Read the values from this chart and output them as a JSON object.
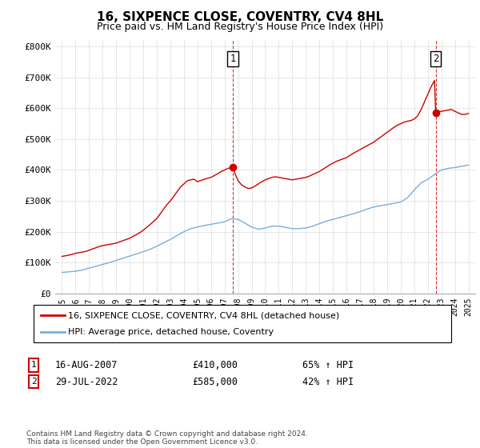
{
  "title": "16, SIXPENCE CLOSE, COVENTRY, CV4 8HL",
  "subtitle": "Price paid vs. HM Land Registry's House Price Index (HPI)",
  "ylim": [
    0,
    820000
  ],
  "yticks": [
    0,
    100000,
    200000,
    300000,
    400000,
    500000,
    600000,
    700000,
    800000
  ],
  "ytick_labels": [
    "£0",
    "£100K",
    "£200K",
    "£300K",
    "£400K",
    "£500K",
    "£600K",
    "£700K",
    "£800K"
  ],
  "red_color": "#cc0000",
  "blue_color": "#7aaddb",
  "sale1_x": 2007.62,
  "sale1_y": 410000,
  "sale2_x": 2022.58,
  "sale2_y": 585000,
  "legend_red": "16, SIXPENCE CLOSE, COVENTRY, CV4 8HL (detached house)",
  "legend_blue": "HPI: Average price, detached house, Coventry",
  "annotation1_num": "1",
  "annotation1_date": "16-AUG-2007",
  "annotation1_price": "£410,000",
  "annotation1_hpi": "65% ↑ HPI",
  "annotation2_num": "2",
  "annotation2_date": "29-JUL-2022",
  "annotation2_price": "£585,000",
  "annotation2_hpi": "42% ↑ HPI",
  "footer": "Contains HM Land Registry data © Crown copyright and database right 2024.\nThis data is licensed under the Open Government Licence v3.0.",
  "xlim_left": 1994.5,
  "xlim_right": 2025.5,
  "red_years": [
    1995.0,
    1995.25,
    1995.5,
    1995.75,
    1996.0,
    1996.25,
    1996.5,
    1996.75,
    1997.0,
    1997.25,
    1997.5,
    1997.75,
    1998.0,
    1998.25,
    1998.5,
    1998.75,
    1999.0,
    1999.25,
    1999.5,
    1999.75,
    2000.0,
    2000.25,
    2000.5,
    2000.75,
    2001.0,
    2001.25,
    2001.5,
    2001.75,
    2002.0,
    2002.25,
    2002.5,
    2002.75,
    2003.0,
    2003.25,
    2003.5,
    2003.75,
    2004.0,
    2004.25,
    2004.5,
    2004.75,
    2005.0,
    2005.25,
    2005.5,
    2005.75,
    2006.0,
    2006.25,
    2006.5,
    2006.75,
    2007.0,
    2007.25,
    2007.5,
    2007.62,
    2007.75,
    2008.0,
    2008.25,
    2008.5,
    2008.75,
    2009.0,
    2009.25,
    2009.5,
    2009.75,
    2010.0,
    2010.25,
    2010.5,
    2010.75,
    2011.0,
    2011.25,
    2011.5,
    2011.75,
    2012.0,
    2012.25,
    2012.5,
    2012.75,
    2013.0,
    2013.25,
    2013.5,
    2013.75,
    2014.0,
    2014.25,
    2014.5,
    2014.75,
    2015.0,
    2015.25,
    2015.5,
    2015.75,
    2016.0,
    2016.25,
    2016.5,
    2016.75,
    2017.0,
    2017.25,
    2017.5,
    2017.75,
    2018.0,
    2018.25,
    2018.5,
    2018.75,
    2019.0,
    2019.25,
    2019.5,
    2019.75,
    2020.0,
    2020.25,
    2020.5,
    2020.75,
    2021.0,
    2021.25,
    2021.5,
    2021.75,
    2022.0,
    2022.25,
    2022.5,
    2022.58,
    2022.75,
    2023.0,
    2023.25,
    2023.5,
    2023.75,
    2024.0,
    2024.25,
    2024.5,
    2024.75,
    2025.0
  ],
  "red_vals": [
    120000,
    122000,
    124000,
    127000,
    130000,
    132000,
    134000,
    136000,
    140000,
    144000,
    148000,
    152000,
    155000,
    157000,
    159000,
    161000,
    163000,
    167000,
    171000,
    175000,
    179000,
    185000,
    191000,
    197000,
    205000,
    214000,
    223000,
    233000,
    243000,
    258000,
    273000,
    288000,
    300000,
    315000,
    330000,
    345000,
    355000,
    365000,
    368000,
    370000,
    362000,
    366000,
    370000,
    373000,
    376000,
    382000,
    388000,
    395000,
    400000,
    405000,
    408000,
    410000,
    390000,
    365000,
    352000,
    345000,
    340000,
    342000,
    348000,
    355000,
    362000,
    368000,
    372000,
    376000,
    378000,
    376000,
    374000,
    372000,
    370000,
    368000,
    370000,
    372000,
    374000,
    376000,
    380000,
    385000,
    390000,
    395000,
    402000,
    409000,
    416000,
    422000,
    428000,
    432000,
    436000,
    440000,
    447000,
    454000,
    460000,
    466000,
    472000,
    478000,
    484000,
    490000,
    498000,
    506000,
    514000,
    522000,
    530000,
    538000,
    545000,
    550000,
    555000,
    558000,
    560000,
    565000,
    575000,
    595000,
    620000,
    645000,
    670000,
    690000,
    585000,
    590000,
    590000,
    592000,
    594000,
    596000,
    590000,
    585000,
    580000,
    580000,
    583000
  ],
  "blue_years": [
    1995.0,
    1995.5,
    1996.0,
    1996.5,
    1997.0,
    1997.5,
    1998.0,
    1998.5,
    1999.0,
    1999.5,
    2000.0,
    2000.5,
    2001.0,
    2001.5,
    2002.0,
    2002.5,
    2003.0,
    2003.5,
    2004.0,
    2004.5,
    2005.0,
    2005.5,
    2006.0,
    2006.5,
    2007.0,
    2007.5,
    2008.0,
    2008.5,
    2009.0,
    2009.5,
    2010.0,
    2010.5,
    2011.0,
    2011.5,
    2012.0,
    2012.5,
    2013.0,
    2013.5,
    2014.0,
    2014.5,
    2015.0,
    2015.5,
    2016.0,
    2016.5,
    2017.0,
    2017.5,
    2018.0,
    2018.5,
    2019.0,
    2019.5,
    2020.0,
    2020.5,
    2021.0,
    2021.5,
    2022.0,
    2022.5,
    2023.0,
    2023.5,
    2024.0,
    2024.5,
    2025.0
  ],
  "blue_vals": [
    68000,
    70000,
    72000,
    76000,
    82000,
    88000,
    94000,
    100000,
    107000,
    114000,
    121000,
    128000,
    135000,
    143000,
    153000,
    164000,
    175000,
    188000,
    200000,
    210000,
    215000,
    220000,
    224000,
    228000,
    232000,
    242000,
    240000,
    228000,
    215000,
    208000,
    212000,
    218000,
    218000,
    214000,
    210000,
    210000,
    212000,
    218000,
    226000,
    234000,
    240000,
    246000,
    252000,
    258000,
    265000,
    273000,
    280000,
    284000,
    288000,
    292000,
    296000,
    310000,
    335000,
    358000,
    370000,
    385000,
    400000,
    405000,
    408000,
    412000,
    416000
  ]
}
